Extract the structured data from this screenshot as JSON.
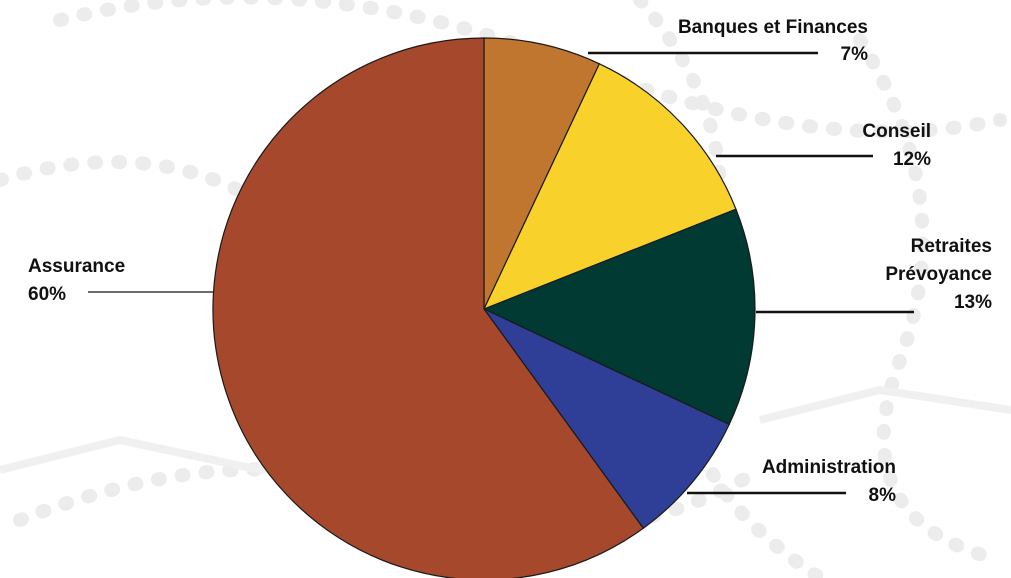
{
  "chart_data": {
    "type": "pie",
    "title": "",
    "start_angle_deg": 0,
    "direction": "clockwise",
    "slices": [
      {
        "label": [
          "Banques et Finances"
        ],
        "value": 7,
        "value_label": "7%",
        "color": "#c0762e"
      },
      {
        "label": [
          "Conseil"
        ],
        "value": 12,
        "value_label": "12%",
        "color": "#f9d12b"
      },
      {
        "label": [
          "Retraites",
          "Prévoyance"
        ],
        "value": 13,
        "value_label": "13%",
        "color": "#003a33"
      },
      {
        "label": [
          "Administration"
        ],
        "value": 8,
        "value_label": "8%",
        "color": "#2f3e96"
      },
      {
        "label": [
          "Assurance"
        ],
        "value": 60,
        "value_label": "60%",
        "color": "#a5482c"
      }
    ],
    "background_watermark": "faint light-gray pattern"
  }
}
